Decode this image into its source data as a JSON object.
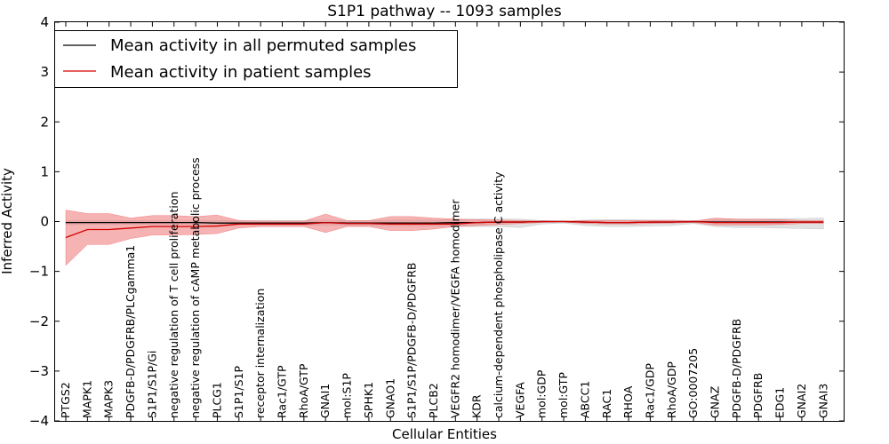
{
  "chart_data": {
    "type": "line",
    "title": "S1P1 pathway -- 1093 samples",
    "xlabel": "Cellular Entities",
    "ylabel": "Inferred Activity",
    "ylim": [
      -4,
      4
    ],
    "yticks": [
      -4,
      -3,
      -2,
      -1,
      0,
      1,
      2,
      3,
      4
    ],
    "ytick_labels": [
      "−4",
      "−3",
      "−2",
      "−1",
      "0",
      "1",
      "2",
      "3",
      "4"
    ],
    "legend_position": "top-left",
    "categories": [
      "PTGS2",
      "MAPK1",
      "MAPK3",
      "PDGFB-D/PDGFRB/PLCgamma1",
      "S1P1/S1P/Gi",
      "negative regulation of T cell proliferation",
      "negative regulation of cAMP metabolic process",
      "PLCG1",
      "S1P1/S1P",
      "receptor internalization",
      "Rac1/GTP",
      "RhoA/GTP",
      "GNAI1",
      "mol:S1P",
      "SPHK1",
      "GNAO1",
      "S1P1/S1P/PDGFB-D/PDGFRB",
      "PLCB2",
      "VEGFR2 homodimer/VEGFA homodimer",
      "KDR",
      "calcium-dependent phospholipase C activity",
      "VEGFA",
      "mol:GDP",
      "mol:GTP",
      "ABCC1",
      "RAC1",
      "RHOA",
      "Rac1/GDP",
      "RhoA/GDP",
      "GO:0007205",
      "GNAZ",
      "PDGFB-D/PDGFRB",
      "PDGFRB",
      "EDG1",
      "GNAI2",
      "GNAI3"
    ],
    "series": [
      {
        "name": "Mean activity in all permuted samples",
        "color": "#000000",
        "values": [
          -0.02,
          -0.02,
          -0.02,
          -0.02,
          -0.02,
          -0.02,
          -0.02,
          -0.03,
          -0.03,
          -0.03,
          -0.03,
          -0.03,
          -0.02,
          -0.03,
          -0.03,
          -0.03,
          -0.03,
          -0.03,
          -0.02,
          -0.02,
          -0.01,
          -0.01,
          0.0,
          0.0,
          -0.01,
          -0.02,
          -0.02,
          -0.01,
          -0.01,
          0.0,
          -0.01,
          -0.01,
          -0.01,
          -0.01,
          -0.01,
          -0.01
        ],
        "band_color": "#c8c8c8",
        "band_lower": [
          -0.06,
          -0.06,
          -0.06,
          -0.06,
          -0.06,
          -0.06,
          -0.06,
          -0.07,
          -0.07,
          -0.08,
          -0.08,
          -0.08,
          -0.07,
          -0.08,
          -0.08,
          -0.09,
          -0.09,
          -0.09,
          -0.1,
          -0.1,
          -0.1,
          -0.12,
          -0.05,
          -0.03,
          -0.08,
          -0.1,
          -0.1,
          -0.09,
          -0.08,
          -0.04,
          -0.1,
          -0.12,
          -0.12,
          -0.13,
          -0.14,
          -0.15
        ],
        "band_upper": [
          0.02,
          0.02,
          0.02,
          0.02,
          0.02,
          0.02,
          0.02,
          0.02,
          0.02,
          0.02,
          0.02,
          0.02,
          0.03,
          0.02,
          0.02,
          0.03,
          0.03,
          0.03,
          0.04,
          0.05,
          0.05,
          0.05,
          0.02,
          0.01,
          0.03,
          0.04,
          0.04,
          0.03,
          0.03,
          0.02,
          0.04,
          0.05,
          0.05,
          0.06,
          0.06,
          0.07
        ]
      },
      {
        "name": "Mean activity in patient samples",
        "color": "#d40000",
        "values": [
          -0.32,
          -0.16,
          -0.16,
          -0.13,
          -0.1,
          -0.1,
          -0.1,
          -0.09,
          -0.05,
          -0.05,
          -0.05,
          -0.05,
          -0.02,
          -0.04,
          -0.04,
          -0.05,
          -0.05,
          -0.05,
          -0.05,
          -0.02,
          -0.01,
          -0.01,
          0.0,
          0.0,
          -0.01,
          -0.02,
          -0.02,
          -0.01,
          -0.01,
          0.0,
          -0.02,
          -0.02,
          -0.02,
          -0.02,
          -0.01,
          -0.01
        ],
        "band_color": "#f08080",
        "band_lower": [
          -0.88,
          -0.46,
          -0.46,
          -0.34,
          -0.27,
          -0.27,
          -0.26,
          -0.24,
          -0.13,
          -0.1,
          -0.1,
          -0.1,
          -0.22,
          -0.1,
          -0.1,
          -0.18,
          -0.18,
          -0.15,
          -0.1,
          -0.08,
          -0.06,
          -0.04,
          -0.02,
          -0.01,
          -0.04,
          -0.05,
          -0.05,
          -0.04,
          -0.03,
          -0.02,
          -0.07,
          -0.07,
          -0.07,
          -0.06,
          -0.04,
          -0.04
        ],
        "band_upper": [
          0.23,
          0.16,
          0.16,
          0.07,
          0.12,
          0.12,
          0.1,
          0.13,
          0.02,
          0.01,
          0.01,
          0.01,
          0.15,
          0.02,
          0.02,
          0.1,
          0.1,
          0.07,
          0.05,
          0.04,
          0.03,
          0.02,
          0.01,
          0.01,
          0.02,
          0.02,
          0.02,
          0.02,
          0.02,
          0.01,
          0.07,
          0.05,
          0.05,
          0.04,
          0.02,
          0.02
        ]
      }
    ]
  }
}
